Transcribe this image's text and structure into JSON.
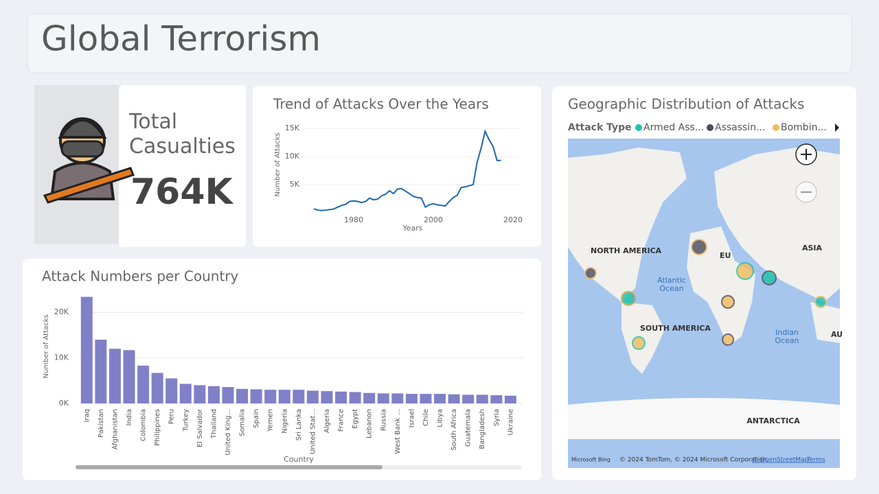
{
  "header": {
    "title": "Global Terrorism"
  },
  "kpi": {
    "label": "Total Casualties",
    "value": "764K"
  },
  "chart_data": [
    {
      "type": "line",
      "title": "Trend of Attacks Over the Years",
      "x_label": "Years",
      "y_label": "Number of Attacks",
      "x": [
        1970,
        1971,
        1972,
        1973,
        1974,
        1975,
        1976,
        1977,
        1978,
        1979,
        1980,
        1981,
        1982,
        1983,
        1984,
        1985,
        1986,
        1987,
        1988,
        1989,
        1990,
        1991,
        1992,
        1994,
        1995,
        1996,
        1997,
        1998,
        1999,
        2000,
        2001,
        2002,
        2003,
        2004,
        2005,
        2006,
        2007,
        2008,
        2009,
        2010,
        2011,
        2012,
        2013,
        2014,
        2015,
        2016,
        2017
      ],
      "series": [
        {
          "name": "Attacks",
          "color": "#1f66b3",
          "values": [
            700,
            450,
            400,
            450,
            550,
            650,
            1000,
            1300,
            1500,
            2000,
            2100,
            2000,
            1800,
            2000,
            2600,
            2300,
            2400,
            3000,
            3300,
            3900,
            3400,
            4200,
            4300,
            3400,
            2900,
            2700,
            2600,
            1000,
            1400,
            1600,
            1400,
            1300,
            1200,
            2000,
            2700,
            3100,
            4500,
            4600,
            4800,
            5000,
            9000,
            11500,
            14500,
            13000,
            11800,
            9300,
            9300
          ]
        }
      ],
      "xlim": [
        1965,
        2020
      ],
      "xticks": [
        1980,
        2000,
        2020
      ],
      "ylim": [
        0,
        16000
      ],
      "yticks": [
        {
          "value": 5000,
          "label": "5K"
        },
        {
          "value": 10000,
          "label": "10K"
        },
        {
          "value": 15000,
          "label": "15K"
        }
      ]
    },
    {
      "type": "bar",
      "title": "Attack Numbers per Country",
      "x_label": "Country",
      "y_label": "Number of Attacks",
      "categories": [
        "Iraq",
        "Pakistan",
        "Afghanistan",
        "India",
        "Colombia",
        "Philippines",
        "Peru",
        "Turkey",
        "El Salvador",
        "Thailand",
        "United King...",
        "Somalia",
        "Spain",
        "Yemen",
        "Nigeria",
        "Sri Lanka",
        "United Stat...",
        "Algeria",
        "France",
        "Egypt",
        "Lebanon",
        "Russia",
        "West Bank ...",
        "Israel",
        "Chile",
        "Libya",
        "South Africa",
        "Guatemala",
        "Bangladesh",
        "Syria",
        "Ukraine"
      ],
      "values": [
        23400,
        14000,
        12000,
        11700,
        8300,
        6700,
        5500,
        4300,
        4000,
        3800,
        3600,
        3200,
        3100,
        3000,
        3000,
        3000,
        2800,
        2700,
        2600,
        2500,
        2300,
        2200,
        2200,
        2100,
        2100,
        2100,
        2000,
        1900,
        1900,
        1800,
        1700
      ],
      "color": "#8080c8",
      "ylim": [
        0,
        25000
      ],
      "yticks": [
        {
          "value": 0,
          "label": "0K"
        },
        {
          "value": 10000,
          "label": "10K"
        },
        {
          "value": 20000,
          "label": "20K"
        }
      ],
      "grid": true
    }
  ],
  "map": {
    "title": "Geographic Distribution of Attacks",
    "legend_title": "Attack Type",
    "legend": [
      {
        "name": "Armed Ass...",
        "color": "#1fc1a8"
      },
      {
        "name": "Assassin...",
        "color": "#4b4b5e"
      },
      {
        "name": "Bombin...",
        "color": "#f2bb5c"
      }
    ],
    "labels": [
      "NORTH AMERICA",
      "ASIA",
      "Atlantic",
      "Ocean",
      "SOUTH AMERICA",
      "Indian",
      "Ocean",
      "ANTARCTICA",
      "AU",
      "EU"
    ],
    "footer": [
      "Microsoft Bing",
      "© 2024 TomTom, © 2024 Microsoft Corporation,",
      "© OpenStreetMap",
      "Terms"
    ]
  }
}
